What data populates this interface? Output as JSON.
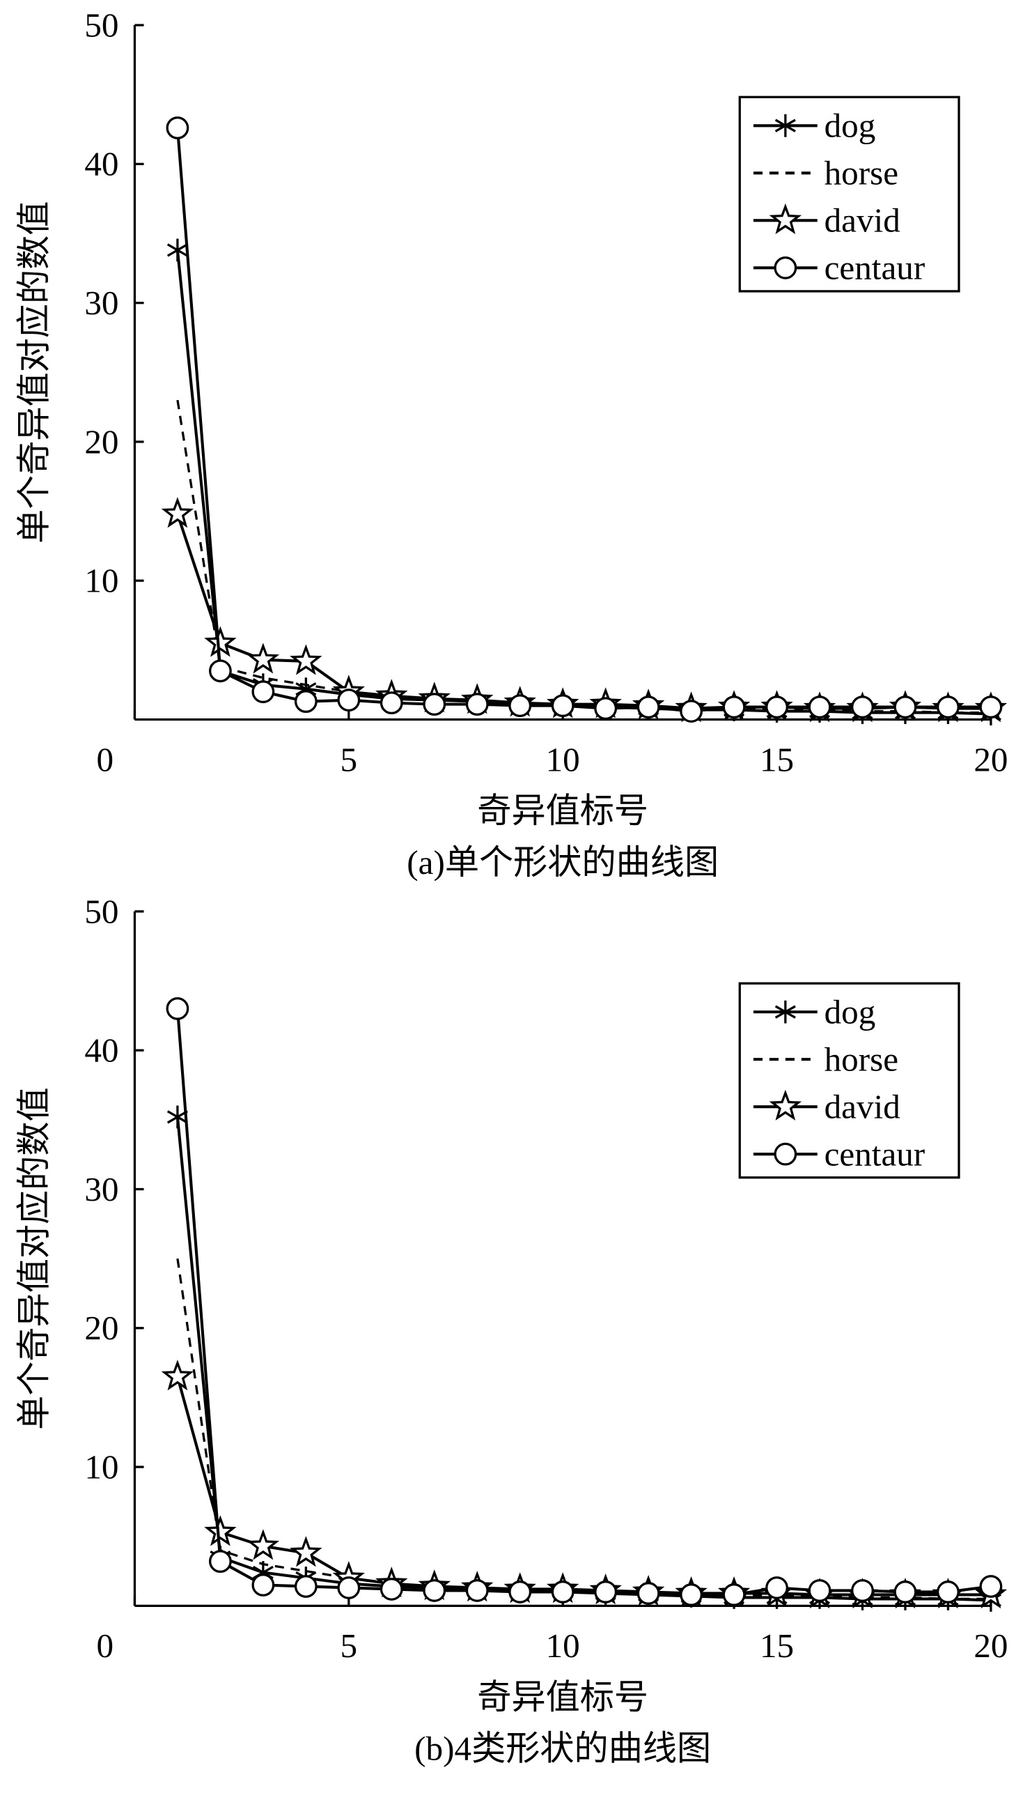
{
  "chart_data": [
    {
      "type": "line",
      "y_label": "单个奇异值对应的数值",
      "x_label": "奇异值标号",
      "caption": "(a)单个形状的曲线图",
      "x": [
        1,
        2,
        3,
        4,
        5,
        6,
        7,
        8,
        9,
        10,
        11,
        12,
        13,
        14,
        15,
        16,
        17,
        18,
        19,
        20
      ],
      "xlim": [
        0,
        20
      ],
      "xticks": [
        0,
        5,
        10,
        15,
        20
      ],
      "ylim": [
        0,
        50
      ],
      "yticks": [
        10,
        20,
        30,
        40,
        50
      ],
      "legend": "upper right",
      "series": [
        {
          "name": "dog",
          "color": "#000",
          "marker": "asterisk",
          "dash": false,
          "values": [
            33.8,
            3.5,
            2.5,
            2.2,
            1.8,
            1.5,
            1.4,
            1.3,
            1.1,
            1.0,
            0.9,
            0.8,
            0.7,
            0.7,
            0.6,
            0.6,
            0.5,
            0.5,
            0.5,
            0.4
          ]
        },
        {
          "name": "horse",
          "color": "#000",
          "marker": "none",
          "dash": true,
          "values": [
            23,
            3.8,
            3.0,
            2.5,
            2.0,
            1.6,
            1.4,
            1.3,
            1.2,
            1.1,
            1.0,
            0.9,
            0.8,
            0.8,
            0.7,
            0.7,
            0.6,
            0.6,
            0.5,
            0.5
          ]
        },
        {
          "name": "david",
          "color": "#000",
          "marker": "star",
          "dash": false,
          "values": [
            14.8,
            5.5,
            4.3,
            4.2,
            2.0,
            1.7,
            1.5,
            1.4,
            1.2,
            1.1,
            1.1,
            1.0,
            0.8,
            0.9,
            0.9,
            0.8,
            0.8,
            0.9,
            0.8,
            0.8
          ]
        },
        {
          "name": "centaur",
          "color": "#000",
          "marker": "circle",
          "dash": false,
          "values": [
            42.6,
            3.5,
            2.0,
            1.3,
            1.4,
            1.2,
            1.1,
            1.1,
            1.0,
            1.0,
            0.8,
            0.9,
            0.6,
            0.9,
            0.9,
            0.9,
            0.9,
            0.9,
            0.9,
            0.9
          ]
        }
      ]
    },
    {
      "type": "line",
      "y_label": "单个奇异值对应的数值",
      "x_label": "奇异值标号",
      "caption": "(b)4类形状的曲线图",
      "x": [
        1,
        2,
        3,
        4,
        5,
        6,
        7,
        8,
        9,
        10,
        11,
        12,
        13,
        14,
        15,
        16,
        17,
        18,
        19,
        20
      ],
      "xlim": [
        0,
        20
      ],
      "xticks": [
        0,
        5,
        10,
        15,
        20
      ],
      "ylim": [
        0,
        50
      ],
      "yticks": [
        10,
        20,
        30,
        40,
        50
      ],
      "legend": "upper right",
      "series": [
        {
          "name": "dog",
          "color": "#000",
          "marker": "asterisk",
          "dash": false,
          "values": [
            35.2,
            3.5,
            2.4,
            2.0,
            1.6,
            1.4,
            1.3,
            1.2,
            1.0,
            1.0,
            0.9,
            0.8,
            0.7,
            0.6,
            0.6,
            0.6,
            0.5,
            0.5,
            0.5,
            0.4
          ]
        },
        {
          "name": "horse",
          "color": "#000",
          "marker": "none",
          "dash": true,
          "values": [
            25,
            4.0,
            3.0,
            2.5,
            2.0,
            1.6,
            1.4,
            1.3,
            1.2,
            1.1,
            1.0,
            0.9,
            0.8,
            0.8,
            0.7,
            0.7,
            0.6,
            0.6,
            0.5,
            0.5
          ]
        },
        {
          "name": "david",
          "color": "#000",
          "marker": "star",
          "dash": false,
          "values": [
            16.5,
            5.3,
            4.3,
            3.8,
            2.0,
            1.6,
            1.4,
            1.3,
            1.2,
            1.2,
            1.1,
            1.0,
            0.9,
            0.9,
            0.9,
            0.8,
            0.8,
            0.8,
            0.8,
            0.8
          ]
        },
        {
          "name": "centaur",
          "color": "#000",
          "marker": "circle",
          "dash": false,
          "values": [
            43,
            3.2,
            1.5,
            1.4,
            1.3,
            1.2,
            1.1,
            1.1,
            1.0,
            1.0,
            1.0,
            0.9,
            0.8,
            0.8,
            1.3,
            1.1,
            1.1,
            1.0,
            1.0,
            1.4
          ]
        }
      ]
    }
  ]
}
